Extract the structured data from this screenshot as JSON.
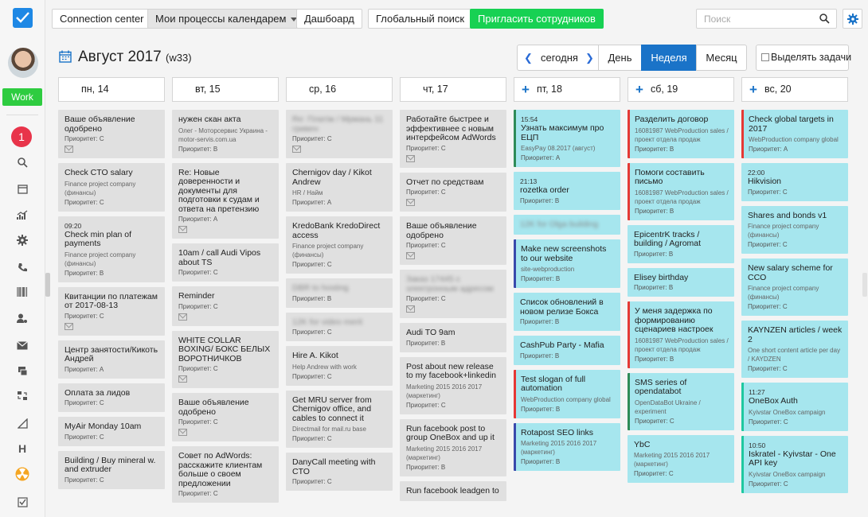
{
  "topbar": {
    "connection": "Connection center",
    "my_processes": "Мои процессы календарем",
    "dashboard": "Дашбоард",
    "global_search": "Глобальный поиск",
    "invite": "Пригласить сотрудников",
    "search_placeholder": "Поиск"
  },
  "rail": {
    "work": "Work",
    "notif": "1",
    "h_label": "H"
  },
  "header": {
    "month": "Август 2017",
    "week": "(w33)",
    "today": "сегодня",
    "day": "День",
    "week_btn": "Неделя",
    "month_btn": "Месяц",
    "select_tasks": "Выделять задачи"
  },
  "colors": {
    "accent": "#1a73c8",
    "green": "#17d153",
    "badge": "#e8344a",
    "card_gray": "#e0e0e0",
    "card_cyan": "#a6e6ee"
  },
  "days": [
    {
      "label": "пн, 14",
      "plus": false,
      "cards": [
        {
          "t": "Ваше объявление одобрено",
          "pri": "Приоритет: C",
          "env": true
        },
        {
          "t": "Check CTO salary",
          "sub": "Finance project company (финансы)",
          "pri": "Приоритет: C"
        },
        {
          "time": "09:20",
          "t": "Check min plan of payments",
          "sub": "Finance project company (финансы)",
          "pri": "Приоритет: B"
        },
        {
          "t": "Квитанции по платежам от 2017-08-13",
          "pri": "Приоритет: C",
          "env": true
        },
        {
          "t": "Центр занятости/Кикоть Андрей",
          "pri": "Приоритет: A"
        },
        {
          "t": "Оплата за лидов",
          "pri": "Приоритет: C"
        },
        {
          "t": "MyAir Monday 10am",
          "pri": "Приоритет: C"
        },
        {
          "t": "Building / Buy mineral w. and extruder",
          "pri": "Приоритет: C"
        }
      ]
    },
    {
      "label": "вт, 15",
      "plus": false,
      "cards": [
        {
          "t": "нужен скан акта",
          "sub": "Олег - Моторсервис Украина - motor-servis.com.ua",
          "pri": "Приоритет: B"
        },
        {
          "t": "Re: Новые доверенности и документы для подготовки к судам и ответа на претензию",
          "pri": "Приоритет: A",
          "env": true
        },
        {
          "t": "10am / call Audi Vipos about TS",
          "pri": "Приоритет: C"
        },
        {
          "t": "Reminder",
          "pri": "Приоритет: C",
          "env": true
        },
        {
          "t": "WHITE COLLAR BOXING/ БОКС БЕЛЫХ ВОРОТНИЧКОВ",
          "pri": "Приоритет: C",
          "env": true
        },
        {
          "t": "Ваше объявление одобрено",
          "pri": "Приоритет: C",
          "env": true
        },
        {
          "t": "Совет по AdWords: расскажите клиентам больше о своем предложении",
          "pri": "Приоритет: C"
        }
      ]
    },
    {
      "label": "ср, 16",
      "plus": false,
      "cards": [
        {
          "t": "Re: Платіж / Мрмань 11 гривен",
          "blur": true,
          "pri": "Приоритет: C",
          "env": true
        },
        {
          "t": "Chernigov day / Kikot Andrew",
          "sub": "HR / Найм",
          "pri": "Приоритет: A"
        },
        {
          "t": "KredoBank KredoDirect access",
          "sub": "Finance project company (финансы)",
          "pri": "Приоритет: C"
        },
        {
          "t": "DBR to hosting",
          "blur": true,
          "pri": "Приоритет: B"
        },
        {
          "t": "12K for video merit",
          "blur": true,
          "pri": "Приоритет: C"
        },
        {
          "t": "Hire A. Kikot",
          "sub": "Help Andrew with work",
          "pri": "Приоритет: C"
        },
        {
          "t": "Get MRU server from Chernigov office, and cables to connect it",
          "sub": "Directmail for mail.ru base",
          "pri": "Приоритет: C"
        },
        {
          "t": "DanyCall meeting with CTO",
          "pri": "Приоритет: C"
        }
      ]
    },
    {
      "label": "чт, 17",
      "plus": false,
      "cards": [
        {
          "t": "Работайте быстрее и эффективнее с новым интерфейсом AdWords",
          "pri": "Приоритет: C",
          "env": true
        },
        {
          "t": "Отчет по средствам",
          "pri": "Приоритет: C",
          "env": true
        },
        {
          "t": "Ваше объявление одобрено",
          "pri": "Приоритет: C",
          "env": true
        },
        {
          "t": "Заказ 17445 с электронным адресом",
          "blur": true,
          "pri": "Приоритет: C",
          "env": true
        },
        {
          "t": "Audi TO 9am",
          "pri": "Приоритет: B"
        },
        {
          "t": "Post about new release to my facebook+linkedin",
          "sub": "Marketing 2015 2016 2017 (маркетинг)",
          "pri": "Приоритет: C"
        },
        {
          "t": "Run facebook post to group OneBox and up it",
          "sub": "Marketing 2015 2016 2017 (маркетинг)",
          "pri": "Приоритет: B"
        },
        {
          "t": "Run facebook leadgen to",
          "pri": ""
        }
      ]
    },
    {
      "label": "пт, 18",
      "plus": true,
      "cards": [
        {
          "time": "15:54",
          "t": "Узнать максимум про ЕЦП",
          "sub": "EasyPay 08.2017 (август)",
          "pri": "Приоритет: A",
          "acc": "#2e8b57"
        },
        {
          "time": "21:13",
          "t": "rozetka order",
          "pri": "Приоритет: B"
        },
        {
          "t": "12K for Olga building",
          "blur": true
        },
        {
          "t": "Make new screenshots to our website",
          "sub": "site-webproduction",
          "pri": "Приоритет: B",
          "acc": "#3949ab"
        },
        {
          "t": "Список обновлений в новом релизе Бокса",
          "pri": "Приоритет: B"
        },
        {
          "t": "CashPub Party - Mafia",
          "pri": "Приоритет: B"
        },
        {
          "t": "Test slogan of full automation",
          "sub": "WebProduction company global",
          "pri": "Приоритет: B",
          "acc": "#e53935"
        },
        {
          "t": "Rotapost SEO links",
          "sub": "Marketing 2015 2016 2017 (маркетинг)",
          "pri": "Приоритет: B",
          "acc": "#3949ab"
        }
      ]
    },
    {
      "label": "сб, 19",
      "plus": true,
      "cards": [
        {
          "t": "Разделить договор",
          "sub": "16081987 WebProduction sales / проект отдела продаж",
          "pri": "Приоритет: B",
          "acc": "#e53935"
        },
        {
          "t": "Помоги составить письмо",
          "sub": "16081987 WebProduction sales / проект отдела продаж",
          "pri": "Приоритет: B",
          "acc": "#e53935"
        },
        {
          "t": "EpicentrK tracks / building / Agromat",
          "pri": "Приоритет: B"
        },
        {
          "t": "Elisey birthday",
          "pri": "Приоритет: B"
        },
        {
          "t": "У меня задержка по формированию сценариев настроек",
          "sub": "16081987 WebProduction sales / проект отдела продаж",
          "pri": "Приоритет: B",
          "acc": "#e53935"
        },
        {
          "t": "SMS series of opendatabot",
          "sub": "OpenDataBot Ukraine / experiment",
          "pri": "Приоритет: C",
          "acc": "#2e8b57"
        },
        {
          "t": "YbC",
          "sub": "Marketing 2015 2016 2017 (маркетинг)",
          "pri": "Приоритет: C"
        }
      ]
    },
    {
      "label": "вс, 20",
      "plus": true,
      "cards": [
        {
          "t": "Check global targets in 2017",
          "sub": "WebProduction company global",
          "pri": "Приоритет: A",
          "acc": "#e53935"
        },
        {
          "time": "22:00",
          "t": "Hikvision",
          "pri": "Приоритет: C"
        },
        {
          "t": "Shares and bonds v1",
          "sub": "Finance project company (финансы)",
          "pri": "Приоритет: C"
        },
        {
          "t": "New salary scheme for CCO",
          "sub": "Finance project company (финансы)",
          "pri": "Приоритет: C"
        },
        {
          "t": "KAYNZEN articles / week 2",
          "sub": "One short content article per day / KAYDZEN",
          "pri": "Приоритет: C"
        },
        {
          "time": "11:27",
          "t": "OneBox Auth",
          "sub": "Kyivstar OneBox campaign",
          "pri": "Приоритет: C",
          "acc": "#1ec8a0"
        },
        {
          "time": "10:50",
          "t": "Iskratel - Kyivstar - One API key",
          "sub": "Kyivstar OneBox campaign",
          "pri": "Приоритет: C",
          "acc": "#1ec8a0"
        }
      ]
    }
  ]
}
